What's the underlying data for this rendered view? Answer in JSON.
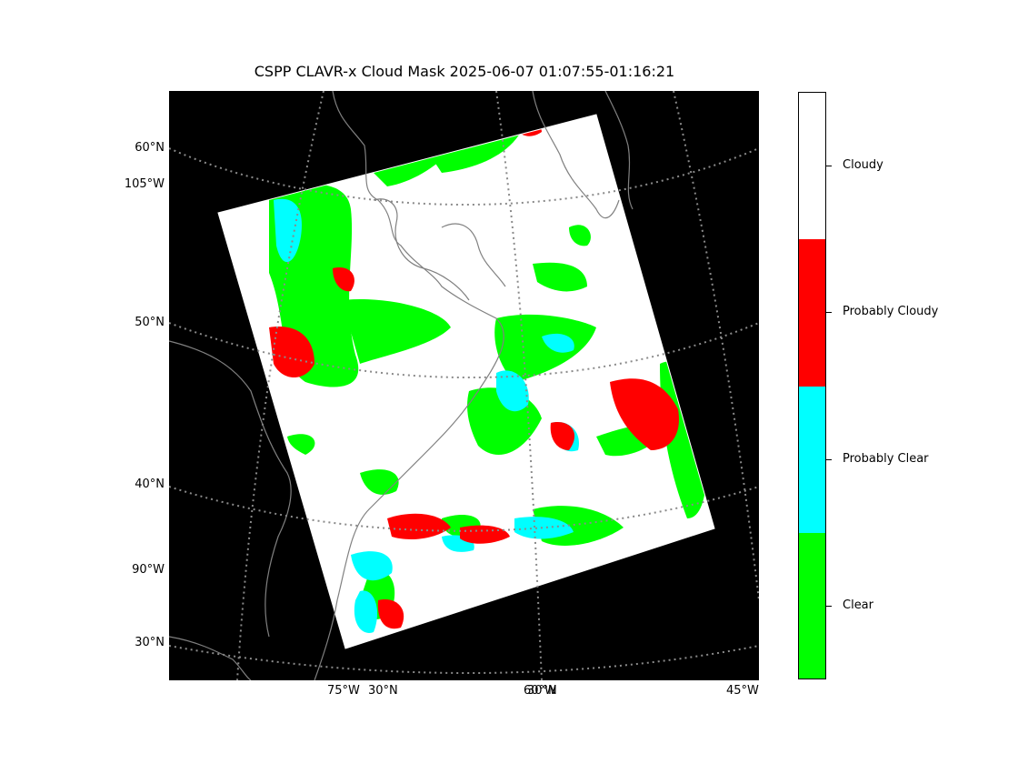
{
  "title": "CSPP CLAVR-x Cloud Mask 2025-06-07 01:07:55-01:16:21",
  "map": {
    "projection": "Lambert Conformal",
    "background_color": "#000000",
    "coastline_color": "#808080",
    "gridline_style": "dotted gray",
    "lat_labels_left": [
      "60°N",
      "105°W",
      "50°N",
      "40°N",
      "90°W",
      "30°N"
    ],
    "lon_labels_bottom": [
      "75°W",
      "30°N",
      "60°W",
      "30°N",
      "45°W"
    ]
  },
  "legend": {
    "categories": [
      {
        "label": "Cloudy",
        "color": "#ffffff"
      },
      {
        "label": "Probably Cloudy",
        "color": "#ff0000"
      },
      {
        "label": "Probably Clear",
        "color": "#00ffff"
      },
      {
        "label": "Clear",
        "color": "#00ff00"
      }
    ]
  }
}
